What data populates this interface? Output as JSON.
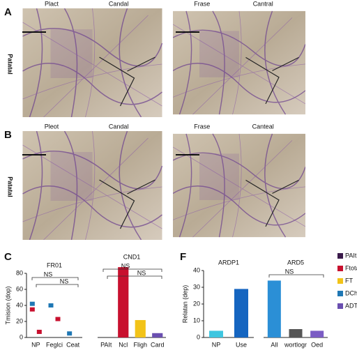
{
  "panels": [
    {
      "label": "A",
      "side": "Patatal",
      "columns": [
        "Plact",
        "Candal",
        "Frase",
        "Cantral"
      ]
    },
    {
      "label": "B",
      "side": "Patatal",
      "columns": [
        "Pleot",
        "Candal",
        "Frase",
        "Canteal"
      ]
    }
  ],
  "chart_data": [
    {
      "type": "dot",
      "panel": "C",
      "title": "FR01",
      "y_label": "Tmision (dop)",
      "categories": [
        "NP",
        "Feglci",
        "Ceat"
      ],
      "points": [
        {
          "x": "NP",
          "value": 35,
          "color": "#c8102e"
        },
        {
          "x": "NP",
          "value": 7,
          "color": "#c8102e"
        },
        {
          "x": "NP",
          "value": 42,
          "color": "#1f77b4"
        },
        {
          "x": "Feglci",
          "value": 40,
          "color": "#1f77b4"
        },
        {
          "x": "Feglci",
          "value": 23,
          "color": "#c8102e"
        },
        {
          "x": "Ceat",
          "value": 5,
          "color": "#1f77b4"
        }
      ],
      "ylim": [
        0,
        80
      ],
      "yticks": [
        0,
        20,
        40,
        60,
        80
      ],
      "annotations": [
        "NS",
        "NS"
      ]
    },
    {
      "type": "bar",
      "title": "CND1",
      "categories": [
        "PAIt",
        "Ncl",
        "Fligh",
        "Card"
      ],
      "values": [
        null,
        97,
        24,
        6
      ],
      "colors": [
        "#c8102e",
        "#c8102e",
        "#f2c318",
        "#6a4fb0"
      ],
      "ylim": [
        0,
        100
      ],
      "annotations": [
        "NS",
        "NS"
      ]
    },
    {
      "type": "bar",
      "panel": "F",
      "title": "ARDP1",
      "y_label": "Relatan (dep)",
      "categories": [
        "NP",
        "Use"
      ],
      "values": [
        4,
        29
      ],
      "colors": [
        "#3ec6e0",
        "#1565c0"
      ],
      "ylim": [
        0,
        40
      ],
      "yticks": [
        0,
        10,
        20,
        30,
        40
      ],
      "annotations": []
    },
    {
      "type": "bar",
      "title": "ARD5",
      "categories": [
        "All",
        "wortlogr",
        "Oed"
      ],
      "values": [
        34,
        5,
        4
      ],
      "colors": [
        "#2b8fd6",
        "#555555",
        "#7b5cc4"
      ],
      "ylim": [
        0,
        40
      ],
      "annotations": [
        "NS"
      ]
    }
  ],
  "legend": [
    {
      "name": "PAIt",
      "color": "#3a1a4a"
    },
    {
      "name": "Ftota",
      "color": "#c8102e"
    },
    {
      "name": "FT",
      "color": "#f2c318"
    },
    {
      "name": "DCh",
      "color": "#1f77b4"
    },
    {
      "name": "ADT",
      "color": "#6a4fb0"
    }
  ]
}
